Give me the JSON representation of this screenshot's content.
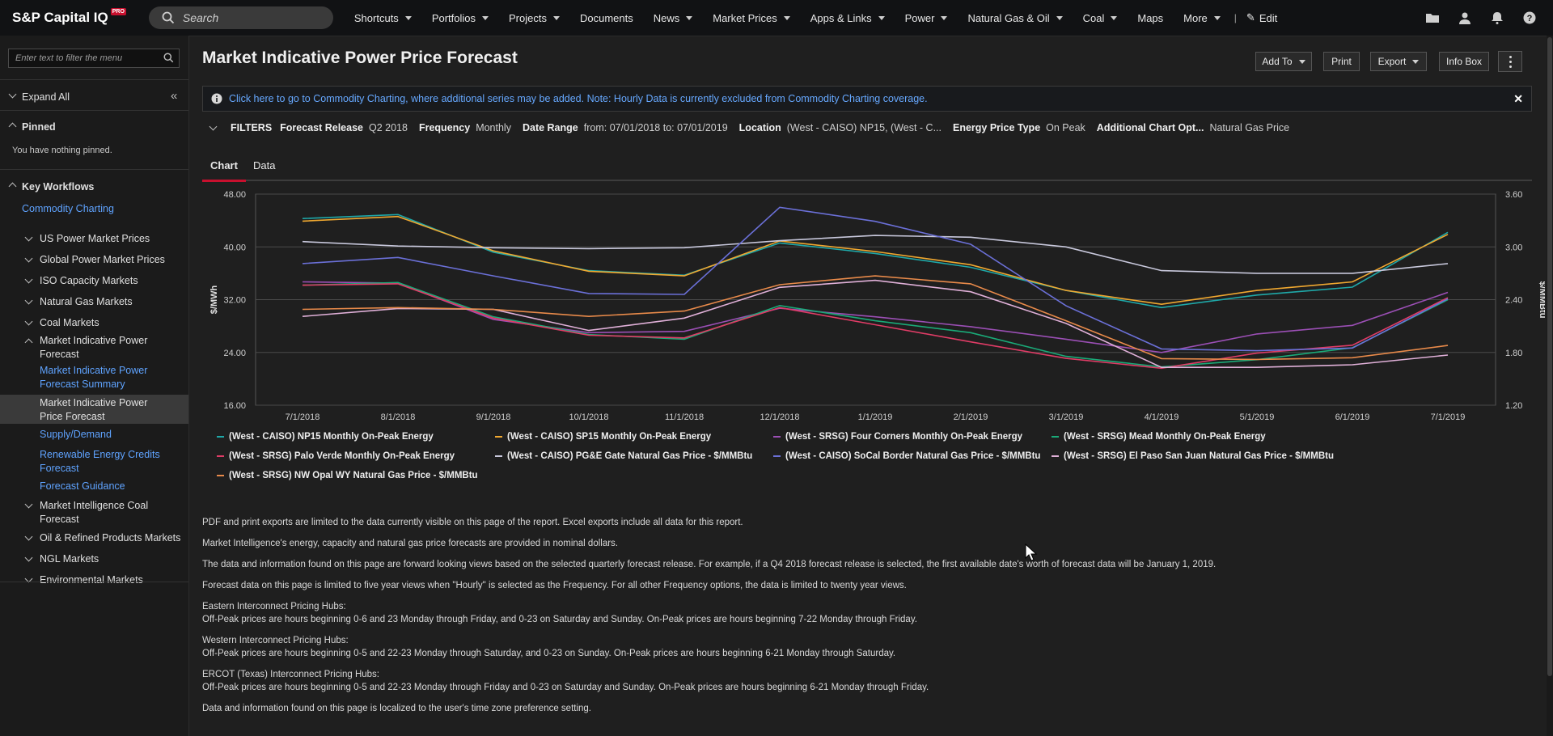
{
  "app": {
    "logo": "S&P Capital IQ",
    "badge": "PRO"
  },
  "search": {
    "placeholder": "Search"
  },
  "nav": [
    {
      "label": "Shortcuts",
      "dropdown": true
    },
    {
      "label": "Portfolios",
      "dropdown": true
    },
    {
      "label": "Projects",
      "dropdown": true
    },
    {
      "label": "Documents",
      "dropdown": false
    },
    {
      "label": "News",
      "dropdown": true
    },
    {
      "label": "Market Prices",
      "dropdown": true
    },
    {
      "label": "Apps & Links",
      "dropdown": true
    },
    {
      "label": "Power",
      "dropdown": true
    },
    {
      "label": "Natural Gas & Oil",
      "dropdown": true
    },
    {
      "label": "Coal",
      "dropdown": true
    },
    {
      "label": "Maps",
      "dropdown": false
    },
    {
      "label": "More",
      "dropdown": true
    }
  ],
  "nav_edit": "Edit",
  "sidebar": {
    "filter_placeholder": "Enter text to filter the menu",
    "expand_all": "Expand All",
    "pinned": "Pinned",
    "pinned_empty": "You have nothing pinned.",
    "key_workflows": "Key Workflows",
    "commodity_charting": "Commodity Charting",
    "items": [
      {
        "label": "US Power Market Prices",
        "type": "group"
      },
      {
        "label": "Global Power Market Prices",
        "type": "group"
      },
      {
        "label": "ISO Capacity Markets",
        "type": "group"
      },
      {
        "label": "Natural Gas Markets",
        "type": "group"
      },
      {
        "label": "Coal Markets",
        "type": "group"
      },
      {
        "label": "Market Indicative Power Forecast",
        "type": "group-open"
      },
      {
        "label": "Market Indicative Power Forecast Summary",
        "type": "link"
      },
      {
        "label": "Market Indicative Power Price Forecast",
        "type": "active"
      },
      {
        "label": "Supply/Demand",
        "type": "link"
      },
      {
        "label": "Renewable Energy Credits Forecast",
        "type": "link"
      },
      {
        "label": "Forecast Guidance",
        "type": "link"
      },
      {
        "label": "Market Intelligence Coal Forecast",
        "type": "group"
      },
      {
        "label": "Oil & Refined Products Markets",
        "type": "group"
      },
      {
        "label": "NGL Markets",
        "type": "group"
      },
      {
        "label": "Environmental Markets",
        "type": "group"
      }
    ]
  },
  "page": {
    "title": "Market Indicative Power Price Forecast",
    "buttons": {
      "add_to": "Add To",
      "print": "Print",
      "export": "Export",
      "info_box": "Info Box"
    },
    "banner": "Click here to go to Commodity Charting, where additional series may be added. Note: Hourly Data is currently excluded from Commodity Charting coverage.",
    "filters": {
      "header": "FILTERS",
      "items": [
        {
          "label": "Forecast Release",
          "value": "Q2 2018"
        },
        {
          "label": "Frequency",
          "value": "Monthly"
        },
        {
          "label": "Date Range",
          "value": "from: 07/01/2018 to: 07/01/2019"
        },
        {
          "label": "Location",
          "value": "(West - CAISO) NP15, (West - C..."
        },
        {
          "label": "Energy Price Type",
          "value": "On Peak"
        },
        {
          "label": "Additional Chart Opt...",
          "value": "Natural Gas Price"
        }
      ]
    },
    "tabs": [
      "Chart",
      "Data"
    ],
    "notes": [
      "PDF and print exports are limited to the data currently visible on this page of the report. Excel exports include all data for this report.",
      "Market Intelligence's energy, capacity and natural gas price forecasts are provided in nominal dollars.",
      "The data and information found on this page are forward looking views based on the selected quarterly forecast release. For example, if a Q4 2018 forecast release is selected, the first available date's worth of forecast data will be January 1, 2019.",
      "Forecast data on this page is limited to five year views when \"Hourly\" is selected as the Frequency. For all other Frequency options, the data is limited to twenty year views.",
      "Eastern Interconnect Pricing Hubs:",
      "Off-Peak prices are hours beginning 0-6 and 23 Monday through Friday, and 0-23 on Saturday and Sunday. On-Peak prices are hours beginning 7-22 Monday through Friday.",
      "Western Interconnect Pricing Hubs:",
      "Off-Peak prices are hours beginning 0-5 and 22-23 Monday through Saturday, and 0-23 on Sunday. On-Peak prices are hours beginning 6-21 Monday through Saturday.",
      "ERCOT (Texas) Interconnect Pricing Hubs:",
      "Off-Peak prices are hours beginning 0-5 and 22-23 Monday through Friday and 0-23 on Saturday and Sunday. On-Peak prices are hours beginning 6-21 Monday through Friday.",
      "Data and information found on this page is localized to the user's time zone preference setting."
    ]
  },
  "colors": {
    "accent": "#c8102e",
    "link": "#5fa3ff",
    "background": "#1f1f1f"
  },
  "chart_data": {
    "type": "line",
    "categories": [
      "7/1/2018",
      "8/1/2018",
      "9/1/2018",
      "10/1/2018",
      "11/1/2018",
      "12/1/2018",
      "1/1/2019",
      "2/1/2019",
      "3/1/2019",
      "4/1/2019",
      "5/1/2019",
      "6/1/2019",
      "7/1/2019"
    ],
    "ylabel": "$/MWh",
    "y2label": "$/MMBtu",
    "ylim": [
      16,
      48
    ],
    "y2lim": [
      1.2,
      3.6
    ],
    "yticks": [
      "48.00",
      "40.00",
      "32.00",
      "24.00",
      "16.00"
    ],
    "y2ticks": [
      "3.60",
      "3.00",
      "2.40",
      "1.80",
      "1.20"
    ],
    "grid": true,
    "legend_position": "bottom",
    "series": [
      {
        "name": "(West - CAISO) NP15 Monthly On-Peak Energy",
        "axis": "left",
        "color": "#1fa8a8",
        "values": [
          44.3,
          44.9,
          39.2,
          36.4,
          35.7,
          40.6,
          39.0,
          36.9,
          33.4,
          30.8,
          32.7,
          33.9,
          42.2
        ]
      },
      {
        "name": "(West - CAISO) SP15 Monthly On-Peak Energy",
        "axis": "left",
        "color": "#f0a830",
        "values": [
          43.9,
          44.6,
          39.4,
          36.3,
          35.6,
          40.9,
          39.3,
          37.3,
          33.4,
          31.3,
          33.4,
          34.7,
          41.9
        ]
      },
      {
        "name": "(West - SRSG) Four Corners Monthly On-Peak Energy",
        "axis": "left",
        "color": "#9b4fb5",
        "values": [
          34.7,
          34.5,
          29.0,
          27.0,
          27.2,
          30.7,
          29.4,
          27.9,
          26.0,
          24.0,
          26.8,
          28.1,
          33.1
        ]
      },
      {
        "name": "(West - SRSG) Mead Monthly On-Peak Energy",
        "axis": "left",
        "color": "#1aaa78",
        "values": [
          34.2,
          34.6,
          29.4,
          26.7,
          26.0,
          31.1,
          28.8,
          27.0,
          23.4,
          21.8,
          22.9,
          24.7,
          32.0
        ]
      },
      {
        "name": "(West - SRSG) Palo Verde Monthly On-Peak Energy",
        "axis": "left",
        "color": "#e03c66",
        "values": [
          34.2,
          34.4,
          29.2,
          26.6,
          26.2,
          30.8,
          28.2,
          25.6,
          23.1,
          21.6,
          23.9,
          25.1,
          32.3
        ]
      },
      {
        "name": "(West - CAISO) PG&E Gate Natural Gas Price - $/MMBtu",
        "axis": "right",
        "color": "#c8c8dc",
        "values": [
          3.06,
          3.01,
          2.99,
          2.98,
          2.99,
          3.07,
          3.13,
          3.11,
          3.0,
          2.73,
          2.7,
          2.7,
          2.81
        ]
      },
      {
        "name": "(West - CAISO) SoCal Border Natural Gas Price - $/MMBtu",
        "axis": "right",
        "color": "#6b70d8",
        "values": [
          2.81,
          2.88,
          2.67,
          2.47,
          2.46,
          3.45,
          3.29,
          3.03,
          2.33,
          1.84,
          1.82,
          1.85,
          2.41
        ]
      },
      {
        "name": "(West - SRSG) El Paso San Juan Natural Gas Price - $/MMBtu",
        "axis": "right",
        "color": "#e0b0d8",
        "values": [
          2.21,
          2.3,
          2.29,
          2.05,
          2.19,
          2.54,
          2.62,
          2.49,
          2.13,
          1.63,
          1.63,
          1.66,
          1.77
        ]
      },
      {
        "name": "(West - SRSG) NW Opal WY Natural Gas Price - $/MMBtu",
        "axis": "right",
        "color": "#e88a4a",
        "values": [
          2.29,
          2.31,
          2.29,
          2.21,
          2.27,
          2.57,
          2.67,
          2.58,
          2.16,
          1.73,
          1.72,
          1.74,
          1.88
        ]
      }
    ]
  }
}
